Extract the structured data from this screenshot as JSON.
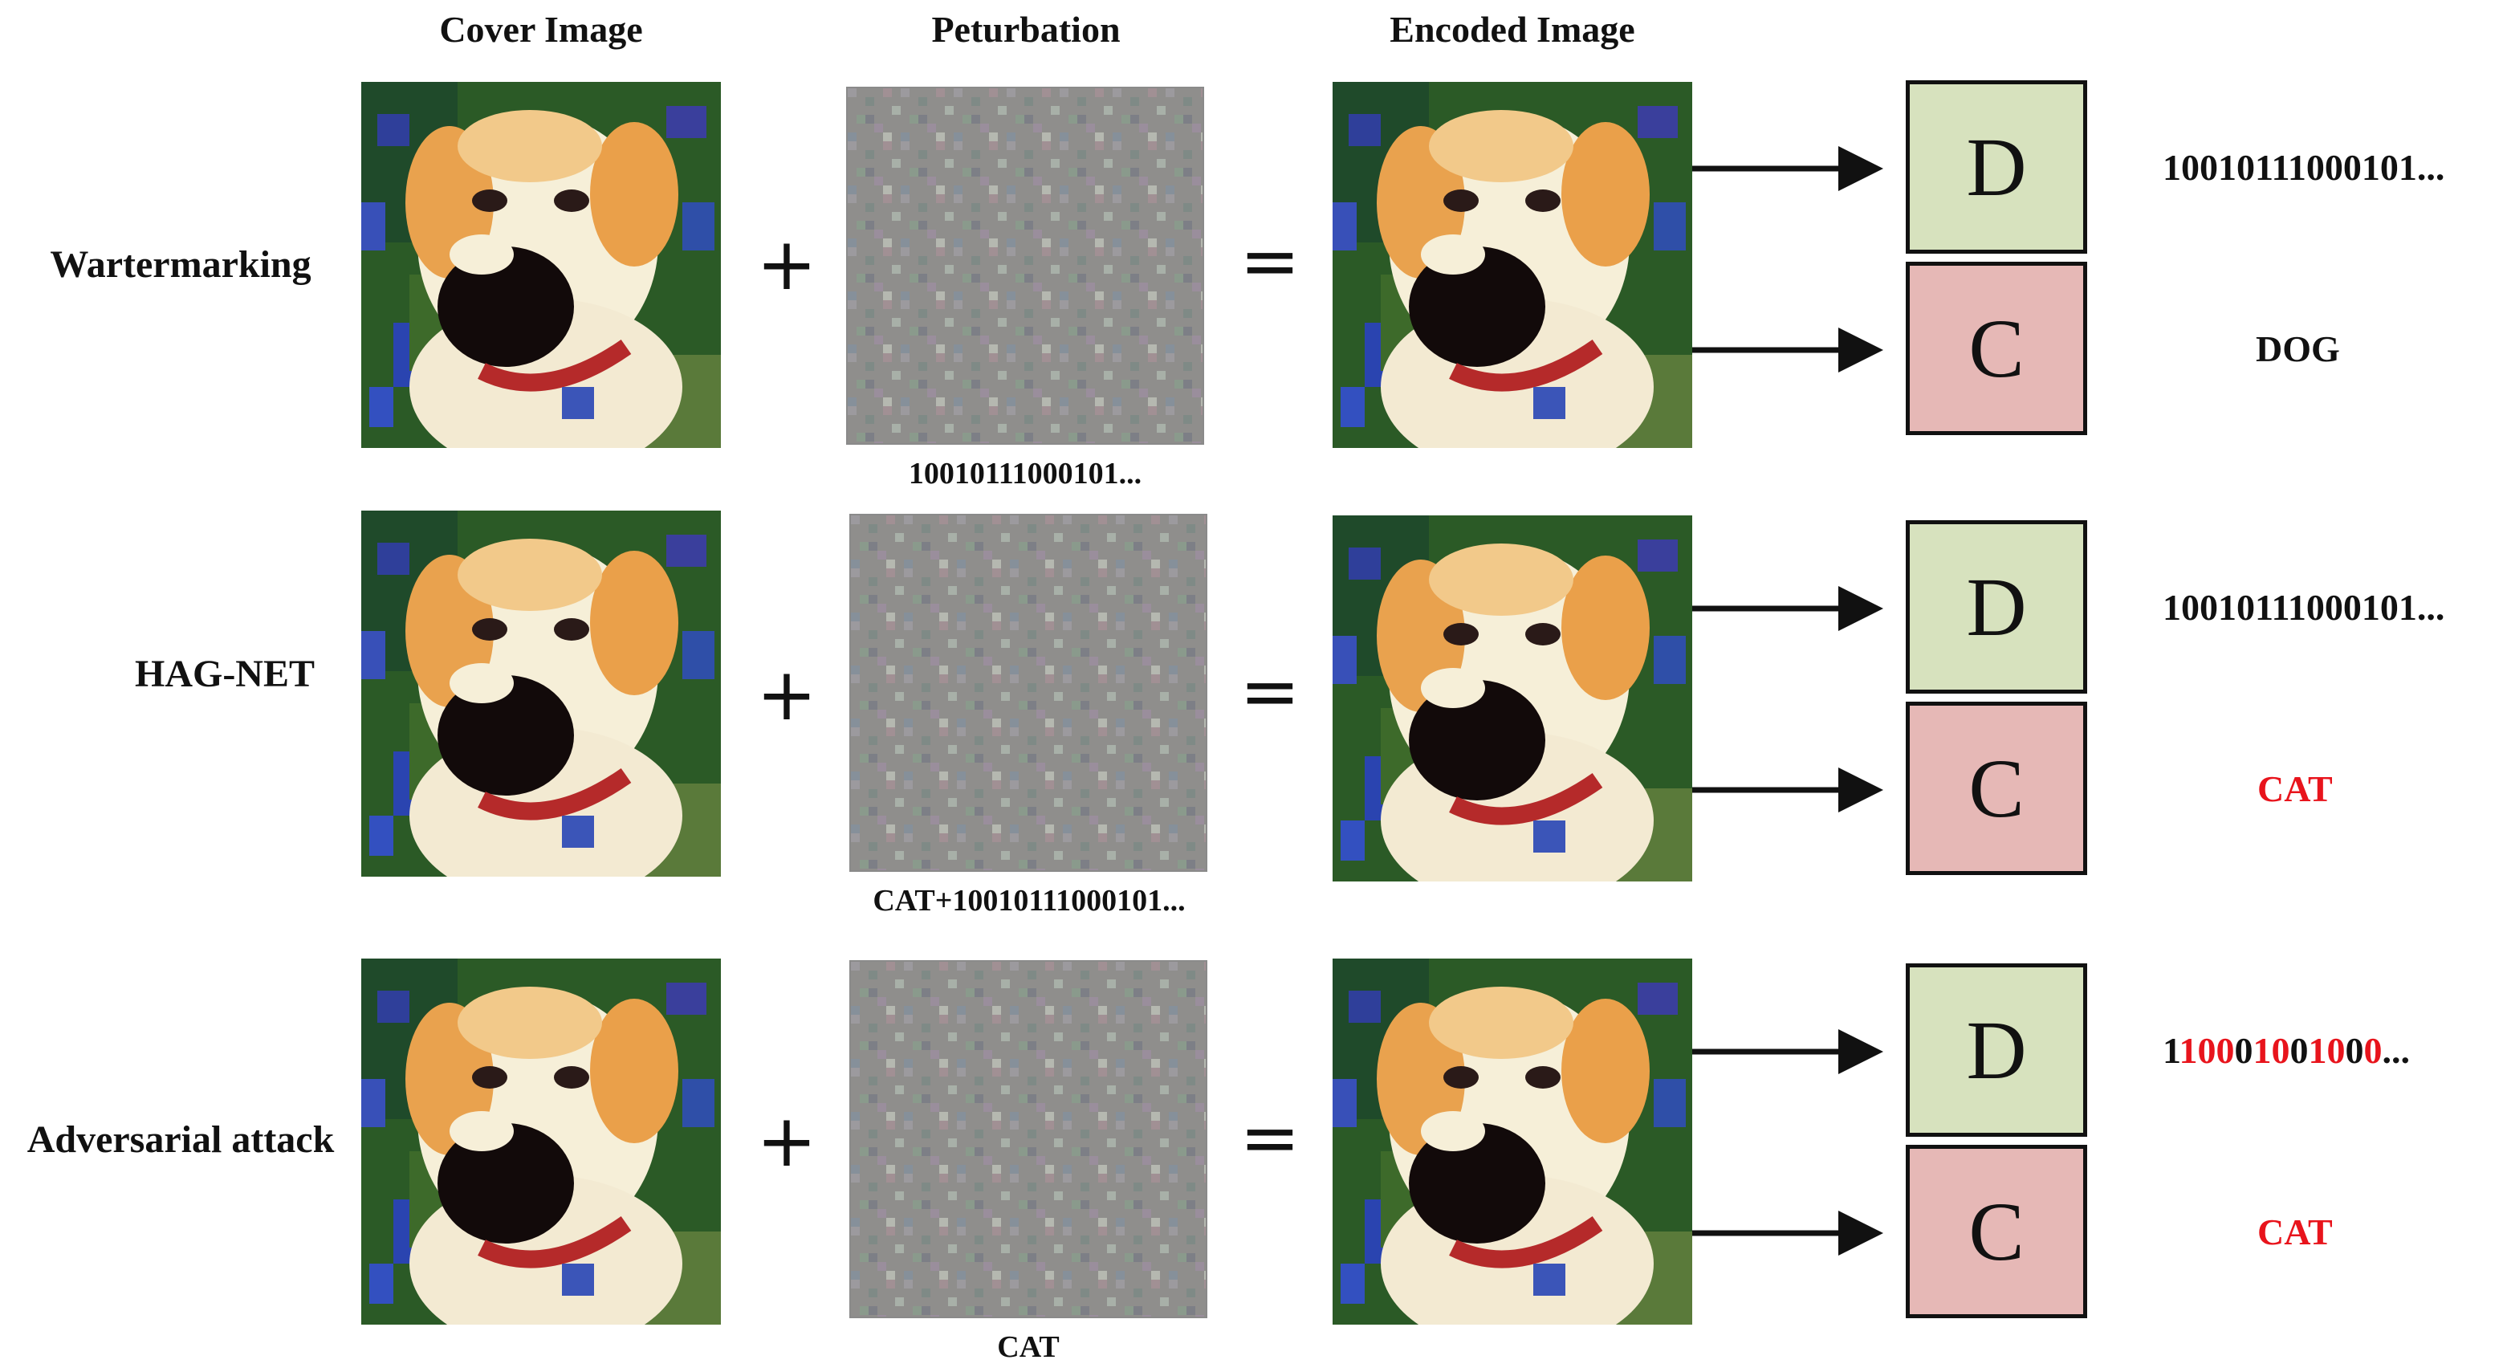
{
  "columns": {
    "cover": "Cover Image",
    "perturbation": "Peturbation",
    "encoded": "Encoded Image"
  },
  "operators": {
    "plus": "+",
    "equals": "="
  },
  "decoders": {
    "d": "D",
    "c": "C"
  },
  "rows": [
    {
      "label": "Wartermarking",
      "perturbation_caption": "10010111000101...",
      "d_output": "10010111000101...",
      "c_output": "DOG"
    },
    {
      "label": "HAG-NET",
      "perturbation_caption": "CAT+10010111000101...",
      "d_output": "10010111000101...",
      "c_output": "CAT"
    },
    {
      "label": "Adversarial attack",
      "perturbation_caption": "CAT",
      "d_output_digits": [
        "1",
        "1",
        "0",
        "0",
        "0",
        "1",
        "0",
        "0",
        "1",
        "0",
        "0",
        "0"
      ],
      "d_output_digit_flags": [
        "n",
        "r",
        "r",
        "r",
        "n",
        "r",
        "r",
        "n",
        "r",
        "r",
        "n",
        "r"
      ],
      "d_output_suffix": "...",
      "c_output": "CAT"
    }
  ],
  "colors": {
    "decoder_d_fill": "#d7e2be",
    "decoder_c_fill": "#e6b8b6",
    "changed_output": "#e8141c",
    "unchanged_output": "#111111"
  }
}
